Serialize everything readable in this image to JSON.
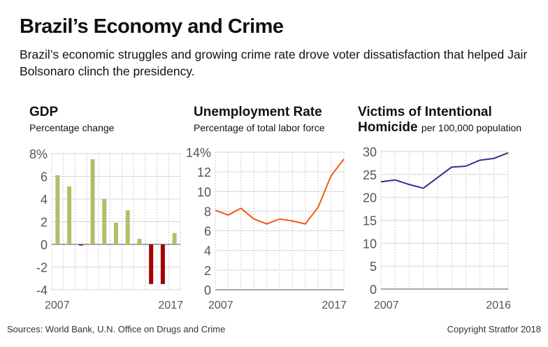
{
  "title": "Brazil’s Economy and Crime",
  "subtitle": "Brazil’s economic struggles and growing crime rate drove voter dissatisfaction that helped Jair Bolsonaro clinch the presidency.",
  "footer": {
    "sources": "Sources: World Bank, U.N. Office on Drugs and Crime",
    "copyright": "Copyright Stratfor 2018"
  },
  "chart_data": [
    {
      "type": "bar",
      "title": "GDP",
      "subtitle": "Percentage change",
      "x": [
        2007,
        2008,
        2009,
        2010,
        2011,
        2012,
        2013,
        2014,
        2015,
        2016,
        2017
      ],
      "values": [
        6.1,
        5.1,
        -0.1,
        7.5,
        4.0,
        1.9,
        3.0,
        0.5,
        -3.5,
        -3.5,
        1.0
      ],
      "ylim": [
        -4,
        8
      ],
      "yticks": [
        "8%",
        "6",
        "4",
        "2",
        "0",
        "-2",
        "-4"
      ],
      "ytick_values": [
        8,
        6,
        4,
        2,
        0,
        -2,
        -4
      ],
      "xtick_labels": [
        "2007",
        "2017"
      ],
      "grid": true,
      "colors": {
        "positive": "#b5bd68",
        "negative": "#a50000"
      }
    },
    {
      "type": "line",
      "title": "Unemployment Rate",
      "subtitle": "Percentage of total labor force",
      "x": [
        2007,
        2008,
        2009,
        2010,
        2011,
        2012,
        2013,
        2014,
        2015,
        2016,
        2017
      ],
      "values": [
        8.1,
        7.6,
        8.3,
        7.2,
        6.7,
        7.2,
        7.0,
        6.7,
        8.4,
        11.6,
        13.3
      ],
      "ylim": [
        0,
        14
      ],
      "yticks": [
        "14%",
        "12",
        "10",
        "8",
        "6",
        "4",
        "2",
        "0"
      ],
      "ytick_values": [
        14,
        12,
        10,
        8,
        6,
        4,
        2,
        0
      ],
      "xtick_labels": [
        "2007",
        "2017"
      ],
      "grid": true,
      "color": "#f05a14"
    },
    {
      "type": "line",
      "title": "Victims of Intentional",
      "title2": "Homicide",
      "subtitle": "per 100,000 population",
      "x": [
        2007,
        2008,
        2009,
        2010,
        2011,
        2012,
        2013,
        2014,
        2015,
        2016
      ],
      "values": [
        23.4,
        23.8,
        22.8,
        22.0,
        24.3,
        26.6,
        26.8,
        28.1,
        28.5,
        29.7
      ],
      "ylim": [
        0,
        30
      ],
      "yticks": [
        "30",
        "25",
        "20",
        "15",
        "10",
        "5",
        "0"
      ],
      "ytick_values": [
        30,
        25,
        20,
        15,
        10,
        5,
        0
      ],
      "xtick_labels": [
        "2007",
        "2016"
      ],
      "grid": true,
      "color": "#2e3192"
    }
  ]
}
